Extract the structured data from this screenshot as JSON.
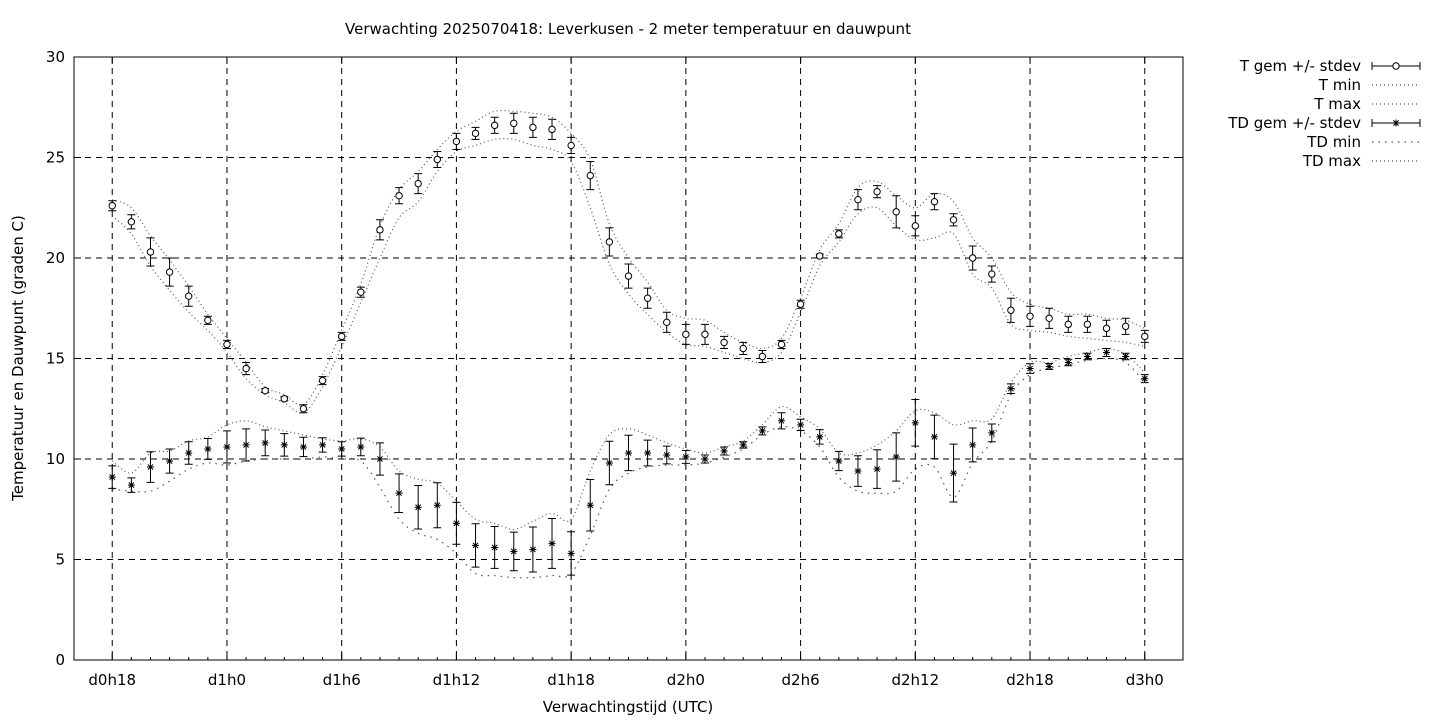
{
  "chart_data": {
    "type": "line",
    "title": "Verwachting 2025070418: Leverkusen - 2 meter temperatuur en dauwpunt",
    "xlabel": "Verwachtingstijd (UTC)",
    "ylabel": "Temperatuur en Dauwpunt (graden C)",
    "ylim": [
      0,
      30
    ],
    "xlim": [
      -2,
      56
    ],
    "yticks": [
      0,
      5,
      10,
      15,
      20,
      25,
      30
    ],
    "xticks": [
      {
        "x": 0,
        "label": "d0h18"
      },
      {
        "x": 6,
        "label": "d1h0"
      },
      {
        "x": 12,
        "label": "d1h6"
      },
      {
        "x": 18,
        "label": "d1h12"
      },
      {
        "x": 24,
        "label": "d1h18"
      },
      {
        "x": 30,
        "label": "d2h0"
      },
      {
        "x": 36,
        "label": "d2h6"
      },
      {
        "x": 42,
        "label": "d2h12"
      },
      {
        "x": 48,
        "label": "d2h18"
      },
      {
        "x": 54,
        "label": "d3h0"
      }
    ],
    "grid": true,
    "legend_position": "outside-top-right",
    "x": [
      0,
      1,
      2,
      3,
      4,
      5,
      6,
      7,
      8,
      9,
      10,
      11,
      12,
      13,
      14,
      15,
      16,
      17,
      18,
      19,
      20,
      21,
      22,
      23,
      24,
      25,
      26,
      27,
      28,
      29,
      30,
      31,
      32,
      33,
      34,
      35,
      36,
      37,
      38,
      39,
      40,
      41,
      42,
      43,
      44,
      45,
      46,
      47,
      48,
      49,
      50,
      51,
      52,
      53,
      54
    ],
    "series": [
      {
        "name": "T gem +/- stdev",
        "marker": "circle",
        "values": [
          22.6,
          21.8,
          20.3,
          19.3,
          18.1,
          16.9,
          15.7,
          14.5,
          13.4,
          13.0,
          12.5,
          13.9,
          16.1,
          18.3,
          21.4,
          23.1,
          23.7,
          24.9,
          25.8,
          26.2,
          26.6,
          26.7,
          26.5,
          26.4,
          25.6,
          24.1,
          20.8,
          19.1,
          18.0,
          16.8,
          16.2,
          16.2,
          15.8,
          15.5,
          15.1,
          15.7,
          17.7,
          20.1,
          21.2,
          22.9,
          23.3,
          22.3,
          21.6,
          22.8,
          21.9,
          20.0,
          19.2,
          17.4,
          17.1,
          17.0,
          16.7,
          16.7,
          16.5,
          16.6,
          16.1
        ],
        "stdev": [
          0.25,
          0.35,
          0.7,
          0.7,
          0.5,
          0.2,
          0.2,
          0.3,
          0.1,
          0.1,
          0.2,
          0.2,
          0.2,
          0.25,
          0.5,
          0.4,
          0.5,
          0.4,
          0.4,
          0.3,
          0.4,
          0.5,
          0.5,
          0.5,
          0.4,
          0.7,
          0.7,
          0.6,
          0.5,
          0.5,
          0.5,
          0.5,
          0.3,
          0.3,
          0.3,
          0.2,
          0.2,
          0.1,
          0.2,
          0.5,
          0.3,
          0.8,
          0.5,
          0.4,
          0.3,
          0.6,
          0.4,
          0.6,
          0.5,
          0.5,
          0.4,
          0.4,
          0.4,
          0.4,
          0.3
        ]
      },
      {
        "name": "T min",
        "values": [
          22.1,
          21.2,
          19.6,
          18.4,
          17.3,
          16.4,
          15.3,
          14.0,
          13.2,
          12.8,
          12.3,
          13.6,
          15.6,
          17.8,
          20.0,
          22.0,
          22.8,
          24.3,
          25.3,
          25.6,
          25.9,
          25.9,
          25.6,
          25.4,
          24.8,
          22.5,
          19.7,
          18.2,
          17.2,
          16.3,
          15.7,
          15.6,
          15.3,
          15.0,
          14.8,
          15.3,
          17.3,
          19.6,
          20.8,
          22.2,
          22.5,
          21.6,
          20.9,
          21.0,
          21.2,
          19.2,
          18.5,
          16.7,
          16.4,
          16.3,
          16.1,
          16.0,
          15.9,
          15.8,
          15.6
        ]
      },
      {
        "name": "T max",
        "values": [
          22.9,
          22.5,
          21.1,
          19.9,
          18.6,
          17.2,
          16.0,
          14.8,
          13.6,
          13.2,
          12.7,
          14.2,
          16.4,
          18.7,
          21.6,
          23.4,
          24.3,
          25.4,
          26.3,
          26.8,
          27.3,
          27.3,
          27.2,
          27.0,
          26.2,
          24.9,
          21.7,
          20.0,
          18.8,
          17.4,
          17.0,
          16.9,
          16.3,
          15.8,
          15.5,
          16.0,
          18.0,
          20.4,
          21.7,
          23.5,
          23.8,
          23.1,
          22.5,
          23.2,
          22.8,
          21.0,
          20.0,
          18.3,
          17.7,
          17.5,
          17.2,
          17.2,
          17.0,
          16.9,
          16.5
        ]
      },
      {
        "name": "TD gem +/- stdev",
        "marker": "star",
        "values": [
          9.1,
          8.7,
          9.6,
          9.9,
          10.3,
          10.5,
          10.6,
          10.7,
          10.8,
          10.7,
          10.6,
          10.7,
          10.5,
          10.6,
          10.0,
          8.3,
          7.6,
          7.7,
          6.8,
          5.7,
          5.6,
          5.4,
          5.5,
          5.8,
          5.3,
          7.7,
          9.8,
          10.3,
          10.3,
          10.2,
          10.1,
          10.0,
          10.4,
          10.7,
          11.4,
          11.9,
          11.7,
          11.1,
          9.9,
          9.4,
          9.5,
          10.1,
          11.8,
          11.1,
          9.3,
          10.7,
          11.3,
          13.5,
          14.5,
          14.6,
          14.8,
          15.1,
          15.3,
          15.1,
          14.0
        ]
      },
      {
        "name": "TD min",
        "values": [
          8.5,
          8.4,
          8.4,
          8.9,
          9.5,
          9.8,
          9.7,
          9.9,
          10.0,
          10.0,
          10.0,
          10.1,
          10.0,
          9.9,
          8.6,
          7.0,
          6.3,
          6.0,
          5.3,
          4.3,
          4.2,
          4.1,
          4.1,
          4.2,
          4.3,
          6.2,
          8.5,
          9.3,
          9.6,
          9.7,
          9.7,
          9.8,
          10.1,
          10.5,
          11.2,
          11.6,
          11.4,
          10.6,
          9.1,
          8.4,
          8.3,
          8.4,
          9.5,
          9.6,
          8.1,
          9.8,
          10.9,
          13.2,
          14.2,
          14.5,
          14.7,
          14.9,
          15.0,
          14.8,
          13.8
        ]
      },
      {
        "name": "TD max",
        "values": [
          9.9,
          9.3,
          10.3,
          10.4,
          10.9,
          11.1,
          11.7,
          11.9,
          11.6,
          11.4,
          11.2,
          11.0,
          10.9,
          11.0,
          10.6,
          9.4,
          9.0,
          8.8,
          7.9,
          7.0,
          6.8,
          6.5,
          6.9,
          7.3,
          7.0,
          9.4,
          11.2,
          11.5,
          11.2,
          10.8,
          10.5,
          10.3,
          10.6,
          10.9,
          11.7,
          12.6,
          12.1,
          11.5,
          10.3,
          10.3,
          10.7,
          11.4,
          12.4,
          12.3,
          11.7,
          11.9,
          12.0,
          13.8,
          14.8,
          14.8,
          15.1,
          15.3,
          15.5,
          15.2,
          14.3
        ]
      }
    ]
  }
}
